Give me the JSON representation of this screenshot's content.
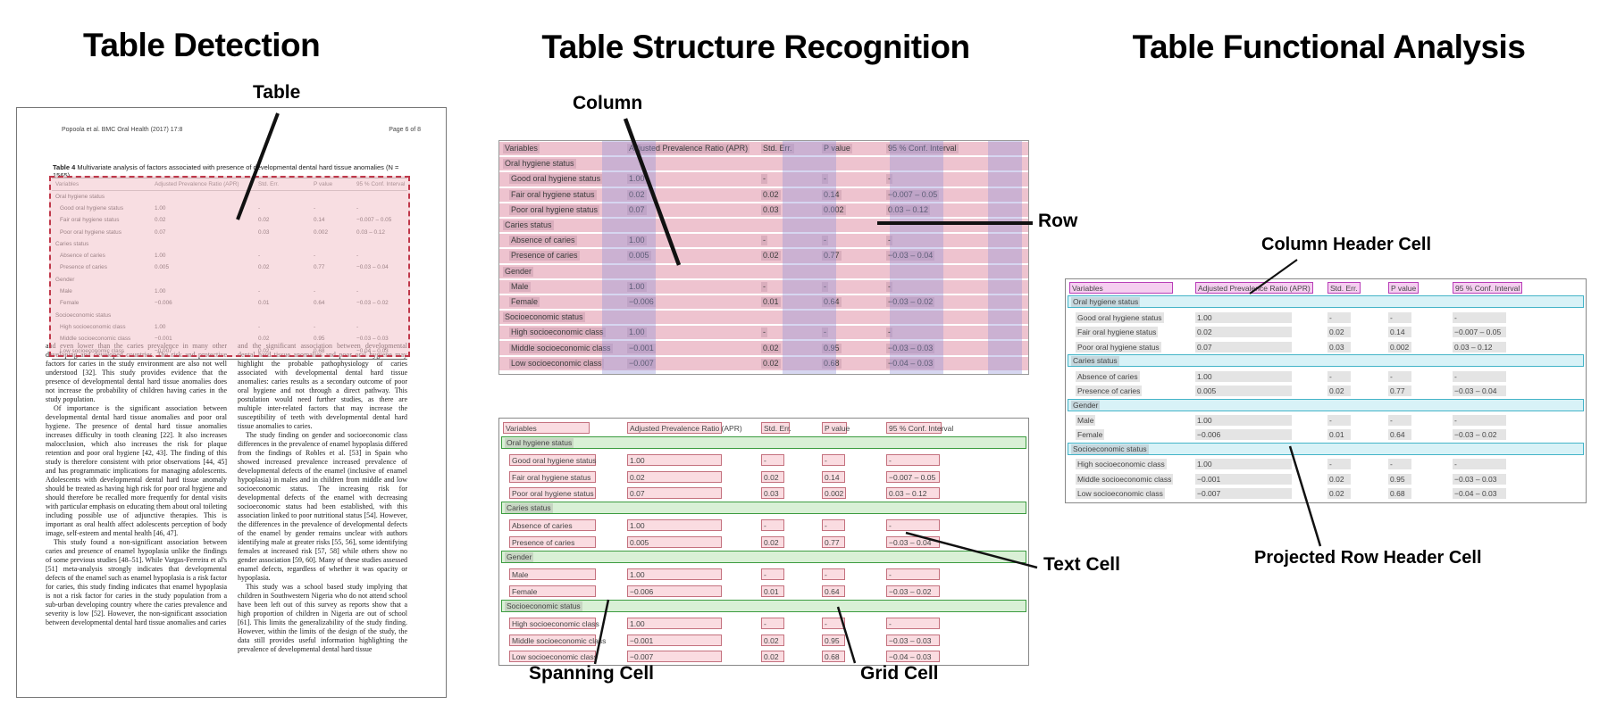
{
  "titles": {
    "panel1": "Table Detection",
    "panel2": "Table Structure Recognition",
    "panel3": "Table Functional Analysis"
  },
  "labels": {
    "table": "Table",
    "column": "Column",
    "row": "Row",
    "text_cell": "Text Cell",
    "spanning_cell": "Spanning Cell",
    "grid_cell": "Grid Cell",
    "column_header_cell": "Column Header Cell",
    "projected_row_header_cell": "Projected Row Header Cell"
  },
  "document": {
    "running_header": "Popoola et al. BMC Oral Health  (2017) 17:8",
    "page_number": "Page 6 of 8",
    "caption_label": "Table 4",
    "caption_text": " Multivariate analysis of factors associated with presence of developmental dental hard tissue anomalies (N = 1565)",
    "body_left": [
      "and even lower than the caries prevalence in many other developing and developed countries. The risk and protective factors for caries in the study environment are also not well understood [32]. This study provides evidence that the presence of developmental dental hard tissue anomalies does not increase the probability of children having caries in the study population.",
      "Of importance is the significant association between developmental dental hard tissue anomalies and poor oral hygiene. The presence of dental hard tissue anomalies increases difficulty in tooth cleaning [22]. It also increases malocclusion, which also increases the risk for plaque retention and poor oral hygiene [42, 43]. The finding of this study is therefore consistent with prior observations [44, 45] and has programmatic implications for managing adolescents. Adolescents with developmental dental hard tissue anomaly should be treated as having high risk for poor oral hygiene and should therefore be recalled more frequently for dental visits with particular emphasis on educating them about oral toileting including possible use of adjunctive therapies. This is important as oral health affect adolescents perception of body image, self-esteem and mental health [46, 47].",
      "This study found a non-significant association between caries and presence of enamel hypoplasia unlike the findings of some previous studies [48–51]. While Vargas-Ferreira et al's [51] meta-analysis strongly indicates that developmental defects of the enamel such as enamel hypoplasia is a risk factor for caries, this study finding indicates that enamel hypoplasia is not a risk factor for caries in the study population from a sub-urban developing country where the caries prevalence and severity is low [52]. However, the non-significant association between developmental dental hard tissue anomalies and caries"
    ],
    "body_right": [
      "and the significant association between developmental dental hard tissue anomalies and poor oral hygiene may highlight the probable pathophysiology of caries associated with developmental dental hard tissue anomalies: caries results as a secondary outcome of poor oral hygiene and not through a direct pathway. This postulation would need further studies, as there are multiple inter-related factors that may increase the susceptibility of teeth with developmental dental hard tissue anomalies to caries.",
      "The study finding on gender and socioeconomic class differences in the prevalence of enamel hypoplasia differed from the findings of Robles et al. [53] in Spain who showed increased prevalence increased prevalence of developmental defects of the enamel (inclusive of enamel hypoplasia) in males and in children from middle and low socioeconomic status. The increasing risk for developmental defects of the enamel with decreasing socioeconomic status had been established, with this association linked to poor nutritional status [54]. However, the differences in the prevalence of developmental defects of the enamel by gender remains unclear with authors identifying male at greater risks [55, 56], some identifying females at increased risk [57, 58] while others show no gender association [59, 60]. Many of these studies assessed enamel defects, regardless of whether it was opacity or hypoplasia.",
      "This study was a school based study implying that children in Southwestern Nigeria who do not attend school have been left out of this survey as reports show that a high proportion of children in Nigeria are out of school [61]. This limits the generalizability of the study finding. However, within the limits of the design of the study, the data still provides useful information highlighting the prevalence of developmental dental hard tissue"
    ]
  },
  "table": {
    "headers": [
      "Variables",
      "Adjusted Prevalence Ratio (APR)",
      "Std. Err.",
      "P value",
      "95 % Conf. Interval"
    ],
    "rows": [
      {
        "type": "section",
        "label": "Oral hygiene status"
      },
      {
        "type": "data",
        "label": "Good oral hygiene status",
        "values": [
          "1.00",
          "-",
          "-",
          "-"
        ]
      },
      {
        "type": "data",
        "label": "Fair oral hygiene status",
        "values": [
          "0.02",
          "0.02",
          "0.14",
          "−0.007 – 0.05"
        ]
      },
      {
        "type": "data",
        "label": "Poor oral hygiene status",
        "values": [
          "0.07",
          "0.03",
          "0.002",
          "0.03 – 0.12"
        ]
      },
      {
        "type": "section",
        "label": "Caries status"
      },
      {
        "type": "data",
        "label": "Absence of caries",
        "values": [
          "1.00",
          "-",
          "-",
          "-"
        ]
      },
      {
        "type": "data",
        "label": "Presence of caries",
        "values": [
          "0.005",
          "0.02",
          "0.77",
          "−0.03 – 0.04"
        ]
      },
      {
        "type": "section",
        "label": "Gender"
      },
      {
        "type": "data",
        "label": "Male",
        "values": [
          "1.00",
          "-",
          "-",
          "-"
        ]
      },
      {
        "type": "data",
        "label": "Female",
        "values": [
          "−0.006",
          "0.01",
          "0.64",
          "−0.03 – 0.02"
        ]
      },
      {
        "type": "section",
        "label": "Socioeconomic status"
      },
      {
        "type": "data",
        "label": "High socioeconomic class",
        "values": [
          "1.00",
          "-",
          "-",
          "-"
        ]
      },
      {
        "type": "data",
        "label": "Middle socioeconomic class",
        "values": [
          "−0.001",
          "0.02",
          "0.95",
          "−0.03 – 0.03"
        ]
      },
      {
        "type": "data",
        "label": "Low socioeconomic class",
        "values": [
          "−0.007",
          "0.02",
          "0.68",
          "−0.04 – 0.03"
        ]
      }
    ]
  },
  "colors": {
    "line": "#111111",
    "detect_fill": "rgba(243,194,202,0.55)",
    "detect_border": "#c0394b",
    "row_pink": "#eec3cf",
    "col_lavender": "rgba(148,148,216,0.38)",
    "text_hl": "rgba(130,85,110,0.18)",
    "cell_fill": "#fadce1",
    "cell_border": "#c4717e",
    "span_fill": "#d9f0d6",
    "span_border": "#3c9c40",
    "hdr_fill": "#f5cef0",
    "hdr_border": "#b83eb8",
    "proj_fill": "#d8f2f7",
    "proj_border": "#44b4c8",
    "bar_gray": "#e4e4e4"
  }
}
